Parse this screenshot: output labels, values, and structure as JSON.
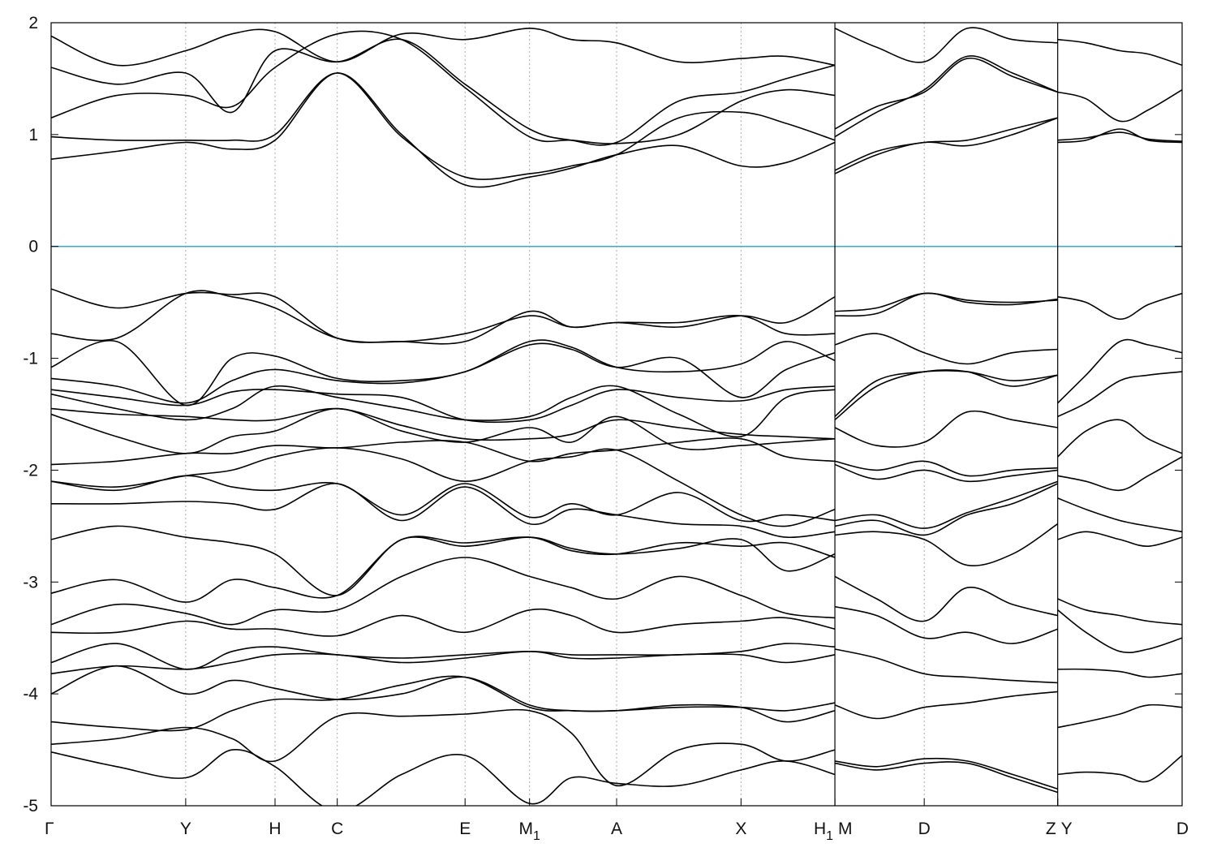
{
  "chart_data": {
    "type": "line",
    "title": "",
    "xlabel": "",
    "ylabel": "",
    "ylim": [
      -5,
      2
    ],
    "yticks": [
      2,
      1,
      0,
      -1,
      -2,
      -3,
      -4,
      -5
    ],
    "ytick_labels": [
      "2",
      "1",
      "0",
      "-1",
      "-2",
      "-3",
      "-4",
      "-5"
    ],
    "fermi_level": 0,
    "fermi_color": "#4aa8c0",
    "band_color": "#000000",
    "grid": "vertical dashed lines at high-symmetry points",
    "kpath": [
      {
        "label": "Γ",
        "sub": "",
        "x": 0.0
      },
      {
        "label": "Y",
        "sub": "",
        "x": 1.19
      },
      {
        "label": "H",
        "sub": "",
        "x": 1.98
      },
      {
        "label": "C",
        "sub": "",
        "x": 2.53
      },
      {
        "label": "E",
        "sub": "",
        "x": 3.66
      },
      {
        "label": "M",
        "sub": "1",
        "x": 4.23
      },
      {
        "label": "A",
        "sub": "",
        "x": 5.0
      },
      {
        "label": "X",
        "sub": "",
        "x": 6.1
      },
      {
        "label": "H",
        "sub": "1",
        "x": 6.93
      },
      {
        "label": "M",
        "sub": "",
        "x": 6.93
      },
      {
        "label": "D",
        "sub": "",
        "x": 7.72
      },
      {
        "label": "Z",
        "sub": "",
        "x": 8.9
      },
      {
        "label": "Y",
        "sub": "",
        "x": 8.9
      },
      {
        "label": "D",
        "sub": "",
        "x": 10.0
      }
    ],
    "breaks": [
      6.93,
      8.9
    ],
    "segments": [
      {
        "range": [
          0.0,
          6.93
        ],
        "x": [
          0.0,
          0.58,
          1.19,
          1.6,
          1.98,
          2.53,
          3.1,
          3.66,
          4.23,
          4.6,
          5.0,
          5.55,
          6.1,
          6.5,
          6.93
        ],
        "series": [
          {
            "values": [
              0.78,
              0.85,
              0.93,
              0.87,
              0.95,
              1.55,
              1.0,
              0.55,
              0.62,
              0.7,
              0.82,
              0.9,
              0.72,
              0.75,
              0.93
            ]
          },
          {
            "values": [
              0.98,
              0.95,
              0.95,
              0.95,
              1.0,
              1.55,
              0.98,
              0.62,
              0.65,
              0.72,
              0.82,
              1.15,
              1.2,
              1.1,
              0.95
            ]
          },
          {
            "values": [
              1.15,
              1.35,
              1.35,
              1.25,
              1.6,
              1.9,
              1.85,
              1.42,
              0.98,
              0.95,
              0.92,
              1.0,
              1.3,
              1.4,
              1.35
            ]
          },
          {
            "values": [
              1.6,
              1.45,
              1.55,
              1.2,
              1.75,
              1.65,
              1.85,
              1.45,
              1.05,
              0.95,
              0.93,
              1.3,
              1.38,
              1.5,
              1.62
            ]
          },
          {
            "values": [
              1.88,
              1.62,
              1.75,
              1.9,
              1.92,
              1.65,
              1.9,
              1.85,
              1.95,
              1.85,
              1.82,
              1.65,
              1.68,
              1.7,
              1.62
            ]
          },
          {
            "values": [
              -0.38,
              -0.55,
              -0.42,
              -0.43,
              -0.45,
              -0.82,
              -0.85,
              -0.85,
              -0.58,
              -0.72,
              -0.68,
              -0.72,
              -0.62,
              -0.68,
              -0.45
            ]
          },
          {
            "values": [
              -0.78,
              -0.82,
              -0.42,
              -0.45,
              -0.55,
              -0.82,
              -0.85,
              -0.78,
              -0.62,
              -0.72,
              -0.68,
              -0.68,
              -0.62,
              -0.78,
              -0.78
            ]
          },
          {
            "values": [
              -1.08,
              -0.85,
              -1.42,
              -1.0,
              -0.98,
              -1.18,
              -1.2,
              -1.12,
              -0.85,
              -0.9,
              -1.08,
              -1.12,
              -1.05,
              -0.85,
              -1.02
            ]
          },
          {
            "values": [
              -1.18,
              -1.25,
              -1.4,
              -1.2,
              -1.1,
              -1.2,
              -1.22,
              -1.12,
              -0.88,
              -0.92,
              -1.08,
              -1.0,
              -1.35,
              -1.1,
              -0.95
            ]
          },
          {
            "values": [
              -1.28,
              -1.35,
              -1.42,
              -1.3,
              -1.28,
              -1.32,
              -1.35,
              -1.55,
              -1.55,
              -1.42,
              -1.28,
              -1.35,
              -1.38,
              -1.28,
              -1.25
            ]
          },
          {
            "values": [
              -1.32,
              -1.45,
              -1.55,
              -1.45,
              -1.25,
              -1.35,
              -1.45,
              -1.55,
              -1.52,
              -1.35,
              -1.25,
              -1.5,
              -1.7,
              -1.35,
              -1.28
            ]
          },
          {
            "values": [
              -1.45,
              -1.5,
              -1.52,
              -1.55,
              -1.55,
              -1.45,
              -1.6,
              -1.72,
              -1.72,
              -1.68,
              -1.55,
              -1.62,
              -1.68,
              -1.7,
              -1.72
            ]
          },
          {
            "values": [
              -1.5,
              -1.7,
              -1.85,
              -1.7,
              -1.65,
              -1.45,
              -1.65,
              -1.75,
              -1.62,
              -1.75,
              -1.52,
              -1.8,
              -1.78,
              -1.75,
              -1.72
            ]
          },
          {
            "values": [
              -1.95,
              -1.92,
              -1.85,
              -1.85,
              -1.78,
              -1.8,
              -1.75,
              -1.75,
              -1.92,
              -1.85,
              -1.82,
              -1.75,
              -1.72,
              -1.88,
              -1.92
            ]
          },
          {
            "values": [
              -2.1,
              -2.15,
              -2.05,
              -2.0,
              -1.88,
              -1.8,
              -1.9,
              -2.1,
              -1.92,
              -1.88,
              -1.82,
              -2.1,
              -2.4,
              -2.5,
              -2.35
            ]
          },
          {
            "values": [
              -2.1,
              -2.18,
              -2.05,
              -2.15,
              -2.18,
              -2.12,
              -2.4,
              -2.12,
              -2.42,
              -2.3,
              -2.4,
              -2.2,
              -2.45,
              -2.4,
              -2.45
            ]
          },
          {
            "values": [
              -2.3,
              -2.3,
              -2.28,
              -2.3,
              -2.35,
              -2.12,
              -2.45,
              -2.15,
              -2.48,
              -2.35,
              -2.4,
              -2.48,
              -2.5,
              -2.6,
              -2.55
            ]
          },
          {
            "values": [
              -2.62,
              -2.5,
              -2.6,
              -2.65,
              -2.75,
              -3.12,
              -2.62,
              -2.68,
              -2.6,
              -2.7,
              -2.75,
              -2.7,
              -2.62,
              -2.9,
              -2.75
            ]
          },
          {
            "values": [
              -3.1,
              -2.98,
              -3.18,
              -2.98,
              -3.05,
              -3.12,
              -2.62,
              -2.65,
              -2.6,
              -2.72,
              -2.75,
              -2.65,
              -2.68,
              -2.65,
              -2.78
            ]
          },
          {
            "values": [
              -3.38,
              -3.2,
              -3.28,
              -3.38,
              -3.25,
              -3.25,
              -2.95,
              -2.78,
              -2.95,
              -3.05,
              -3.15,
              -2.95,
              -3.12,
              -3.28,
              -3.32
            ]
          },
          {
            "values": [
              -3.45,
              -3.45,
              -3.35,
              -3.42,
              -3.42,
              -3.48,
              -3.3,
              -3.45,
              -3.25,
              -3.3,
              -3.45,
              -3.38,
              -3.35,
              -3.32,
              -3.42
            ]
          },
          {
            "values": [
              -3.72,
              -3.55,
              -3.78,
              -3.62,
              -3.58,
              -3.65,
              -3.68,
              -3.65,
              -3.62,
              -3.65,
              -3.65,
              -3.65,
              -3.62,
              -3.55,
              -3.58
            ]
          },
          {
            "values": [
              -3.82,
              -3.75,
              -3.78,
              -3.72,
              -3.65,
              -3.65,
              -3.72,
              -3.68,
              -3.62,
              -3.68,
              -3.68,
              -3.65,
              -3.65,
              -3.72,
              -3.65
            ]
          },
          {
            "values": [
              -4.0,
              -3.75,
              -4.0,
              -3.88,
              -3.95,
              -4.05,
              -4.0,
              -3.85,
              -4.1,
              -4.15,
              -4.15,
              -4.12,
              -4.12,
              -4.15,
              -4.08
            ]
          },
          {
            "values": [
              -4.25,
              -4.3,
              -4.32,
              -4.15,
              -4.05,
              -4.05,
              -3.92,
              -3.85,
              -4.12,
              -4.15,
              -4.15,
              -4.1,
              -4.12,
              -4.25,
              -4.15
            ]
          },
          {
            "values": [
              -4.45,
              -4.4,
              -4.3,
              -4.4,
              -4.6,
              -4.2,
              -4.2,
              -4.18,
              -4.15,
              -4.35,
              -4.82,
              -4.5,
              -4.45,
              -4.6,
              -4.5
            ]
          },
          {
            "values": [
              -4.52,
              -4.65,
              -4.75,
              -4.5,
              -4.65,
              -5.05,
              -4.72,
              -4.55,
              -4.98,
              -4.75,
              -4.8,
              -4.82,
              -4.68,
              -4.6,
              -4.72
            ]
          }
        ]
      },
      {
        "range": [
          6.93,
          8.9
        ],
        "x": [
          6.93,
          7.3,
          7.72,
          8.1,
          8.5,
          8.9
        ],
        "series": [
          {
            "values": [
              0.65,
              0.82,
              0.93,
              0.9,
              1.0,
              1.15
            ]
          },
          {
            "values": [
              0.68,
              0.85,
              0.93,
              0.95,
              1.05,
              1.15
            ]
          },
          {
            "values": [
              0.98,
              1.2,
              1.4,
              1.7,
              1.55,
              1.38
            ]
          },
          {
            "values": [
              1.05,
              1.25,
              1.38,
              1.68,
              1.52,
              1.38
            ]
          },
          {
            "values": [
              1.95,
              1.78,
              1.65,
              1.95,
              1.85,
              1.82
            ]
          },
          {
            "values": [
              -0.58,
              -0.55,
              -0.42,
              -0.48,
              -0.5,
              -0.48
            ]
          },
          {
            "values": [
              -0.62,
              -0.6,
              -0.42,
              -0.5,
              -0.52,
              -0.47
            ]
          },
          {
            "values": [
              -0.88,
              -0.78,
              -0.95,
              -1.05,
              -0.95,
              -0.92
            ]
          },
          {
            "values": [
              -1.52,
              -1.2,
              -1.12,
              -1.12,
              -1.2,
              -1.15
            ]
          },
          {
            "values": [
              -1.55,
              -1.25,
              -1.12,
              -1.12,
              -1.25,
              -1.15
            ]
          },
          {
            "values": [
              -1.62,
              -1.78,
              -1.75,
              -1.48,
              -1.55,
              -1.62
            ]
          },
          {
            "values": [
              -1.92,
              -2.0,
              -1.92,
              -2.05,
              -2.0,
              -1.98
            ]
          },
          {
            "values": [
              -1.95,
              -2.08,
              -2.0,
              -2.1,
              -2.05,
              -2.0
            ]
          },
          {
            "values": [
              -2.45,
              -2.4,
              -2.52,
              -2.38,
              -2.25,
              -2.1
            ]
          },
          {
            "values": [
              -2.5,
              -2.45,
              -2.58,
              -2.4,
              -2.3,
              -2.12
            ]
          },
          {
            "values": [
              -2.58,
              -2.55,
              -2.62,
              -2.85,
              -2.75,
              -2.48
            ]
          },
          {
            "values": [
              -2.95,
              -3.15,
              -3.35,
              -3.05,
              -3.2,
              -3.3
            ]
          },
          {
            "values": [
              -3.22,
              -3.3,
              -3.5,
              -3.45,
              -3.55,
              -3.42
            ]
          },
          {
            "values": [
              -3.6,
              -3.68,
              -3.82,
              -3.85,
              -3.88,
              -3.9
            ]
          },
          {
            "values": [
              -4.1,
              -4.22,
              -4.12,
              -4.08,
              -4.02,
              -3.98
            ]
          },
          {
            "values": [
              -4.6,
              -4.65,
              -4.58,
              -4.6,
              -4.72,
              -4.85
            ]
          },
          {
            "values": [
              -4.62,
              -4.68,
              -4.62,
              -4.62,
              -4.75,
              -4.88
            ]
          }
        ]
      },
      {
        "range": [
          8.9,
          10.0
        ],
        "x": [
          8.9,
          9.15,
          9.45,
          9.7,
          10.0
        ],
        "series": [
          {
            "values": [
              0.93,
              0.95,
              1.05,
              0.95,
              0.93
            ]
          },
          {
            "values": [
              0.95,
              0.97,
              1.02,
              0.96,
              0.94
            ]
          },
          {
            "values": [
              1.38,
              1.32,
              1.12,
              1.22,
              1.4
            ]
          },
          {
            "values": [
              1.85,
              1.82,
              1.75,
              1.72,
              1.62
            ]
          },
          {
            "values": [
              -0.45,
              -0.5,
              -0.65,
              -0.52,
              -0.42
            ]
          },
          {
            "values": [
              -1.4,
              -1.15,
              -0.85,
              -0.88,
              -0.95
            ]
          },
          {
            "values": [
              -1.52,
              -1.4,
              -1.2,
              -1.15,
              -1.12
            ]
          },
          {
            "values": [
              -1.88,
              -1.65,
              -1.55,
              -1.72,
              -1.85
            ]
          },
          {
            "values": [
              -2.05,
              -2.1,
              -2.18,
              -2.05,
              -1.88
            ]
          },
          {
            "values": [
              -2.25,
              -2.35,
              -2.45,
              -2.5,
              -2.55
            ]
          },
          {
            "values": [
              -2.62,
              -2.55,
              -2.62,
              -2.68,
              -2.6
            ]
          },
          {
            "values": [
              -3.15,
              -3.25,
              -3.3,
              -3.35,
              -3.38
            ]
          },
          {
            "values": [
              -3.25,
              -3.45,
              -3.62,
              -3.6,
              -3.5
            ]
          },
          {
            "values": [
              -3.78,
              -3.78,
              -3.8,
              -3.85,
              -3.82
            ]
          },
          {
            "values": [
              -4.3,
              -4.25,
              -4.18,
              -4.1,
              -4.12
            ]
          },
          {
            "values": [
              -4.72,
              -4.7,
              -4.72,
              -4.78,
              -4.55
            ]
          }
        ]
      }
    ]
  }
}
